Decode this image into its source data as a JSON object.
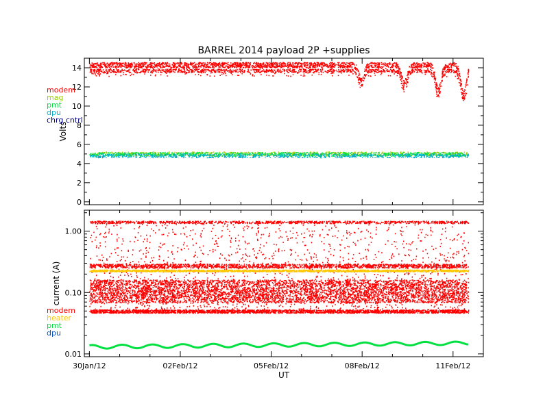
{
  "chart_data": [
    {
      "type": "scatter",
      "title": "BARREL 2014 payload 2P +supplies",
      "xlabel": "",
      "ylabel": "Volts",
      "x_unit": "days",
      "xlim": [
        "2012-01-29T20:00",
        "2012-02-12T00:00"
      ],
      "ylim": [
        -0.3,
        15.0
      ],
      "yticks": [
        0,
        2,
        4,
        6,
        8,
        10,
        12,
        14
      ],
      "grid": false,
      "legend_position": "left",
      "series": [
        {
          "name": "modem",
          "color": "#ff0000",
          "base": 14.1,
          "band": [
            13.3,
            14.6
          ],
          "dips": [
            {
              "center": "2012-02-07T23:00",
              "depth": 12.6
            },
            {
              "center": "2012-02-09T09:00",
              "depth": 12.2
            },
            {
              "center": "2012-02-10T12:00",
              "depth": 11.5
            },
            {
              "center": "2012-02-11T08:00",
              "depth": 11.1
            }
          ]
        },
        {
          "name": "mag",
          "color": "#9ad000",
          "base": 5.0,
          "band": [
            4.8,
            5.2
          ]
        },
        {
          "name": "pmt",
          "color": "#00e040",
          "base": 4.95,
          "band": [
            4.75,
            5.15
          ]
        },
        {
          "name": "dpu",
          "color": "#00b0c8",
          "base": 4.85,
          "band": [
            4.6,
            5.0
          ]
        },
        {
          "name": "chrg cntrl",
          "color": "#000080",
          "base": null
        }
      ]
    },
    {
      "type": "scatter",
      "title": "",
      "xlabel": "UT",
      "ylabel": "current (A)",
      "log_y": true,
      "xlim": [
        "2012-01-29T20:00",
        "2012-02-12T00:00"
      ],
      "ylim": [
        0.009,
        2.2
      ],
      "yticks": [
        "0.01",
        "0.10",
        "1.00"
      ],
      "xticks": [
        "30Jan/12",
        "02Feb/12",
        "05Feb/12",
        "08Feb/12",
        "11Feb/12"
      ],
      "xtick_dates": [
        "2012-01-30",
        "2012-02-02",
        "2012-02-05",
        "2012-02-08",
        "2012-02-11"
      ],
      "grid": false,
      "legend_position": "left",
      "series": [
        {
          "name": "modem",
          "color": "#ff0000",
          "levels": [
            0.048,
            0.075,
            0.1,
            0.13,
            0.26,
            1.4
          ]
        },
        {
          "name": "heater",
          "color": "#ffc800",
          "level": 0.225
        },
        {
          "name": "pmt",
          "color": "#00e040",
          "level": 0.013
        },
        {
          "name": "dpu",
          "color": "#0050c0",
          "level": null
        }
      ]
    }
  ]
}
